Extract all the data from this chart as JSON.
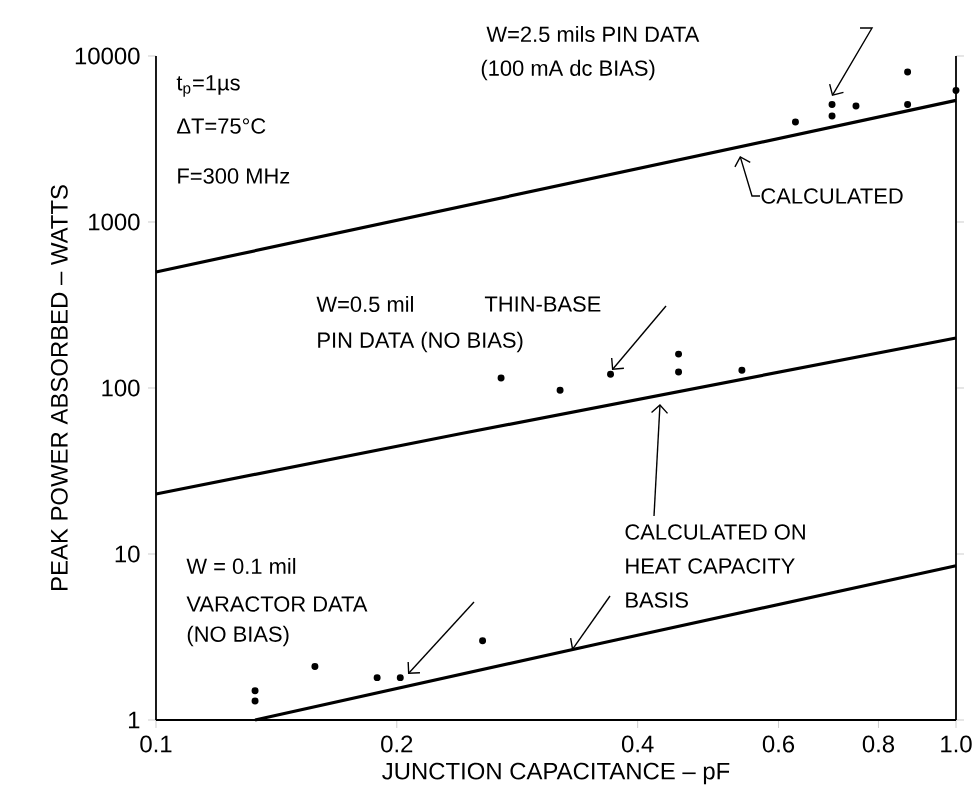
{
  "chart_data": {
    "type": "scatter",
    "xlabel": "JUNCTION CAPACITANCE – pF",
    "ylabel": "PEAK POWER ABSORBED – WATTS",
    "log": "xy",
    "marker": "circle",
    "xlim": [
      0.1,
      1.0
    ],
    "ylim": [
      1,
      10000
    ],
    "xticks": [
      0.1,
      0.2,
      0.4,
      0.6,
      0.8,
      {
        "value": 1.0,
        "label": "1.0"
      }
    ],
    "yticks": [
      1,
      10,
      100,
      1000,
      10000
    ],
    "series": [
      {
        "type": "scatter",
        "color": "#000000",
        "x": [
          0.133,
          0.133,
          0.158,
          0.189,
          0.202,
          0.256
        ],
        "values": [
          1.5,
          1.3,
          2.1,
          1.8,
          1.8,
          3.0
        ]
      },
      {
        "type": "scatter",
        "color": "#000000",
        "x": [
          0.27,
          0.32,
          0.37,
          0.45,
          0.45,
          0.54
        ],
        "values": [
          115,
          97,
          121,
          160,
          125,
          128
        ]
      },
      {
        "type": "scatter",
        "color": "#000000",
        "x": [
          0.63,
          0.7,
          0.7,
          0.75,
          0.87,
          0.87,
          1.0
        ],
        "values": [
          4000,
          5100,
          4350,
          5000,
          8000,
          5100,
          6200
        ]
      },
      {
        "type": "line",
        "marker": "none",
        "color": "#000000",
        "x": [
          0.1,
          1.0
        ],
        "values": [
          500,
          5400
        ]
      },
      {
        "type": "line",
        "marker": "none",
        "color": "#000000",
        "x": [
          0.1,
          0.24,
          1.0
        ],
        "values": [
          23,
          53,
          200
        ]
      },
      {
        "type": "line",
        "marker": "none",
        "color": "#000000",
        "x": [
          0.133,
          0.36,
          1.0
        ],
        "values": [
          1,
          2.9,
          8.5
        ]
      }
    ],
    "annotations": [
      "t$_{p}$=1µs",
      "ΔT=75°C",
      "F=300 MHz",
      "W=2.5 mils PIN DATA",
      "(100 mA dc BIAS)",
      "CALCULATED",
      "W=0.5 mil",
      "THIN-BASE",
      "PIN DATA (NO BIAS)",
      "CALCULATED ON",
      "HEAT CAPACITY",
      "BASIS",
      "W = 0.1 mil",
      "VARACTOR DATA",
      "(NO BIAS)"
    ]
  }
}
